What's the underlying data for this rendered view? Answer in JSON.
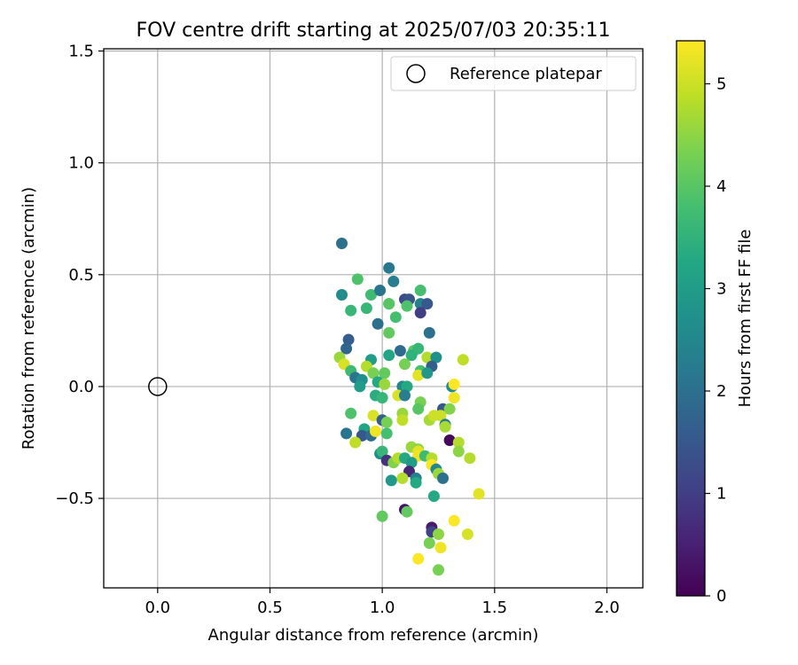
{
  "chart_data": {
    "type": "scatter",
    "title": "FOV centre drift starting at 2025/07/03 20:35:11",
    "xlabel": "Angular distance from reference (arcmin)",
    "ylabel": "Rotation from reference (arcmin)",
    "xlim": [
      -0.24,
      2.16
    ],
    "ylim": [
      -0.9,
      1.51
    ],
    "xticks": [
      0.0,
      0.5,
      1.0,
      1.5,
      2.0
    ],
    "xtick_labels": [
      "0.0",
      "0.5",
      "1.0",
      "1.5",
      "2.0"
    ],
    "yticks": [
      -0.5,
      0.0,
      0.5,
      1.0,
      1.5
    ],
    "ytick_labels": [
      "−0.5",
      "0.0",
      "0.5",
      "1.0",
      "1.5"
    ],
    "grid": true,
    "legend": {
      "placement": "top-right",
      "entries": [
        "Reference platepar"
      ]
    },
    "reference_point": {
      "x": 0.0,
      "y": 0.0
    },
    "colorbar": {
      "label": "Hours from first FF file",
      "range": [
        0,
        5.42
      ],
      "ticks": [
        0,
        1,
        2,
        3,
        4,
        5
      ],
      "tick_labels": [
        "0",
        "1",
        "2",
        "3",
        "4",
        "5"
      ],
      "colormap": "viridis"
    },
    "points": [
      [
        0.82,
        0.64,
        2.0
      ],
      [
        0.82,
        0.41,
        2.6
      ],
      [
        0.89,
        0.48,
        3.9
      ],
      [
        0.86,
        0.34,
        3.6
      ],
      [
        0.93,
        0.35,
        3.6
      ],
      [
        0.95,
        0.41,
        3.7
      ],
      [
        0.99,
        0.43,
        2.1
      ],
      [
        1.03,
        0.53,
        2.2
      ],
      [
        1.05,
        0.47,
        2.3
      ],
      [
        1.1,
        0.39,
        1.2
      ],
      [
        1.12,
        0.39,
        1.4
      ],
      [
        1.17,
        0.43,
        3.8
      ],
      [
        1.17,
        0.37,
        2.4
      ],
      [
        1.2,
        0.37,
        1.5
      ],
      [
        1.17,
        0.33,
        1.0
      ],
      [
        1.03,
        0.37,
        3.5
      ],
      [
        1.03,
        0.37,
        4.0
      ],
      [
        1.06,
        0.31,
        3.8
      ],
      [
        1.11,
        0.36,
        3.9
      ],
      [
        0.98,
        0.28,
        2.0
      ],
      [
        1.21,
        0.24,
        2.0
      ],
      [
        1.03,
        0.24,
        4.1
      ],
      [
        0.85,
        0.21,
        1.6
      ],
      [
        0.84,
        0.17,
        1.8
      ],
      [
        1.08,
        0.16,
        1.9
      ],
      [
        1.14,
        0.16,
        4.0
      ],
      [
        1.16,
        0.17,
        3.6
      ],
      [
        1.13,
        0.14,
        3.5
      ],
      [
        1.03,
        0.14,
        3.2
      ],
      [
        0.95,
        0.12,
        3.0
      ],
      [
        1.1,
        0.1,
        4.3
      ],
      [
        1.2,
        0.13,
        4.8
      ],
      [
        1.24,
        0.13,
        2.7
      ],
      [
        1.22,
        0.09,
        1.6
      ],
      [
        0.81,
        0.13,
        4.6
      ],
      [
        0.83,
        0.1,
        5.1
      ],
      [
        0.86,
        0.07,
        3.7
      ],
      [
        0.93,
        0.09,
        4.8
      ],
      [
        0.96,
        0.06,
        4.3
      ],
      [
        1.01,
        0.06,
        4.1
      ],
      [
        1.17,
        0.07,
        3.8
      ],
      [
        1.16,
        0.05,
        5.2
      ],
      [
        1.2,
        0.06,
        2.9
      ],
      [
        1.36,
        0.12,
        4.9
      ],
      [
        0.88,
        0.04,
        2.1
      ],
      [
        0.91,
        0.03,
        2.7
      ],
      [
        0.9,
        0.0,
        3.0
      ],
      [
        0.98,
        0.02,
        3.3
      ],
      [
        1.01,
        0.01,
        4.6
      ],
      [
        1.09,
        0.0,
        2.5
      ],
      [
        1.11,
        0.0,
        3.3
      ],
      [
        1.31,
        0.0,
        2.6
      ],
      [
        1.32,
        0.01,
        5.4
      ],
      [
        0.97,
        -0.04,
        3.4
      ],
      [
        1.0,
        -0.05,
        3.6
      ],
      [
        1.07,
        -0.04,
        5.1
      ],
      [
        1.1,
        -0.04,
        2.3
      ],
      [
        1.17,
        -0.07,
        4.3
      ],
      [
        1.32,
        -0.05,
        5.3
      ],
      [
        1.16,
        -0.1,
        4.0
      ],
      [
        1.27,
        -0.1,
        1.5
      ],
      [
        1.3,
        -0.1,
        4.4
      ],
      [
        0.86,
        -0.12,
        3.9
      ],
      [
        1.09,
        -0.12,
        4.6
      ],
      [
        0.96,
        -0.13,
        5.1
      ],
      [
        1.0,
        -0.15,
        1.6
      ],
      [
        1.02,
        -0.16,
        4.3
      ],
      [
        1.09,
        -0.15,
        4.9
      ],
      [
        1.21,
        -0.15,
        4.7
      ],
      [
        1.23,
        -0.13,
        5.0
      ],
      [
        1.26,
        -0.13,
        5.0
      ],
      [
        1.28,
        -0.17,
        2.3
      ],
      [
        1.28,
        -0.18,
        4.7
      ],
      [
        0.84,
        -0.21,
        2.1
      ],
      [
        0.92,
        -0.19,
        3.2
      ],
      [
        0.91,
        -0.22,
        1.5
      ],
      [
        0.95,
        -0.22,
        1.9
      ],
      [
        0.97,
        -0.2,
        5.3
      ],
      [
        1.02,
        -0.21,
        3.8
      ],
      [
        0.88,
        -0.25,
        4.9
      ],
      [
        1.3,
        -0.24,
        0.1
      ],
      [
        1.34,
        -0.25,
        4.8
      ],
      [
        1.13,
        -0.27,
        4.6
      ],
      [
        1.16,
        -0.28,
        4.5
      ],
      [
        1.16,
        -0.29,
        5.2
      ],
      [
        1.16,
        -0.31,
        5.3
      ],
      [
        0.99,
        -0.3,
        2.6
      ],
      [
        1.0,
        -0.29,
        3.6
      ],
      [
        1.02,
        -0.33,
        0.8
      ],
      [
        1.05,
        -0.34,
        4.4
      ],
      [
        1.07,
        -0.32,
        4.8
      ],
      [
        1.1,
        -0.32,
        3.3
      ],
      [
        1.13,
        -0.34,
        3.0
      ],
      [
        1.19,
        -0.31,
        3.7
      ],
      [
        1.22,
        -0.32,
        4.8
      ],
      [
        1.22,
        -0.35,
        5.4
      ],
      [
        1.24,
        -0.37,
        2.5
      ],
      [
        1.25,
        -0.39,
        4.6
      ],
      [
        1.27,
        -0.41,
        2.0
      ],
      [
        1.34,
        -0.29,
        4.5
      ],
      [
        1.39,
        -0.32,
        4.8
      ],
      [
        1.12,
        -0.38,
        0.6
      ],
      [
        1.15,
        -0.41,
        2.3
      ],
      [
        1.15,
        -0.43,
        3.3
      ],
      [
        1.09,
        -0.41,
        4.8
      ],
      [
        1.04,
        -0.42,
        2.9
      ],
      [
        1.23,
        -0.49,
        3.3
      ],
      [
        1.43,
        -0.48,
        5.2
      ],
      [
        1.1,
        -0.55,
        0.3
      ],
      [
        1.11,
        -0.56,
        4.1
      ],
      [
        1.0,
        -0.58,
        4.1
      ],
      [
        1.32,
        -0.6,
        5.4
      ],
      [
        1.22,
        -0.63,
        0.4
      ],
      [
        1.22,
        -0.65,
        1.1
      ],
      [
        1.25,
        -0.66,
        4.5
      ],
      [
        1.38,
        -0.66,
        5.1
      ],
      [
        1.21,
        -0.7,
        4.3
      ],
      [
        1.26,
        -0.72,
        5.3
      ],
      [
        1.16,
        -0.77,
        5.4
      ],
      [
        1.25,
        -0.82,
        4.3
      ]
    ]
  }
}
